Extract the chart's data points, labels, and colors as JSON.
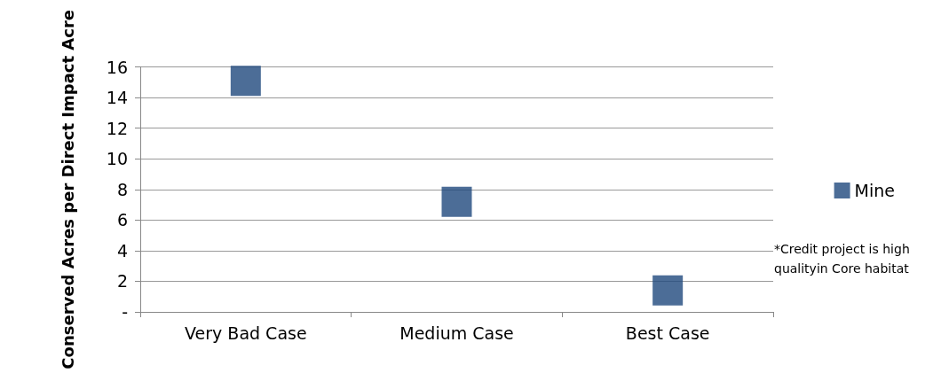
{
  "chart_data": {
    "type": "scatter",
    "ylabel": "Conserved Acres per Direct Impact Acre",
    "categories": [
      "Very Bad Case",
      "Medium Case",
      "Best Case"
    ],
    "series": [
      {
        "name": "Mine",
        "color": "#1f497d",
        "values": [
          15.1,
          7.2,
          1.4
        ]
      }
    ],
    "ylim": [
      0,
      16
    ],
    "yticks": [
      {
        "value": 0,
        "label": "-"
      },
      2,
      4,
      6,
      8,
      10,
      12,
      14,
      16
    ],
    "grid": "y",
    "legend": "right",
    "marker": "square",
    "annotations": [
      "*Credit project is high qualityin Core habitat"
    ]
  }
}
